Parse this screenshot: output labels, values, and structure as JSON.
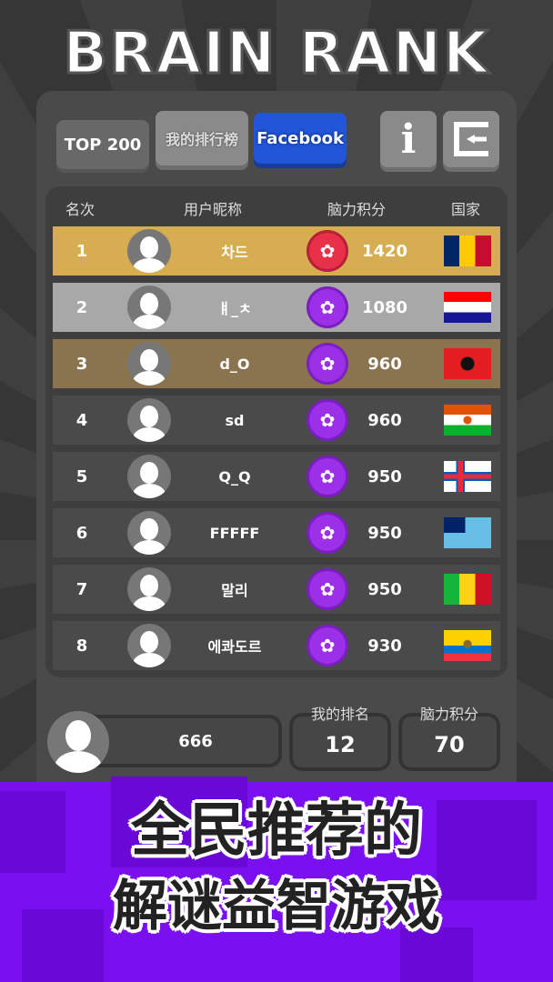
{
  "title": "BRAIN RANK",
  "tabs": {
    "top200": "TOP 200",
    "mine": "我的排行榜",
    "facebook": "Facebook"
  },
  "icons": {
    "info": "i"
  },
  "table": {
    "headers": [
      "名次",
      "用户昵称",
      "脑力积分",
      "国家"
    ],
    "rows": [
      {
        "rank": "1",
        "nick": "차드",
        "score": "1420",
        "flag": "chad",
        "badge": "red-brain-badge",
        "bg": "#d6ad50"
      },
      {
        "rank": "2",
        "nick": "ㅒ_ㅊ",
        "score": "1080",
        "flag": "croatia",
        "badge": "purple-brain-badge",
        "bg": "#a8a8a8"
      },
      {
        "rank": "3",
        "nick": "d_O",
        "score": "960",
        "flag": "albania",
        "badge": "purple-brain-badge",
        "bg": "#8a7450"
      },
      {
        "rank": "4",
        "nick": "sd",
        "score": "960",
        "flag": "niger",
        "badge": "purple-brain-badge",
        "bg": "#4a4a4a"
      },
      {
        "rank": "5",
        "nick": "Q_Q",
        "score": "950",
        "flag": "faroe-islands",
        "badge": "purple-brain-badge",
        "bg": "#4a4a4a"
      },
      {
        "rank": "6",
        "nick": "FFFFF",
        "score": "950",
        "flag": "fiji",
        "badge": "purple-brain-badge",
        "bg": "#4a4a4a"
      },
      {
        "rank": "7",
        "nick": "말리",
        "score": "950",
        "flag": "mali",
        "badge": "purple-brain-badge",
        "bg": "#4a4a4a"
      },
      {
        "rank": "8",
        "nick": "에콰도르",
        "score": "930",
        "flag": "ecuador",
        "badge": "purple-brain-badge",
        "bg": "#4a4a4a"
      }
    ]
  },
  "me": {
    "name": "666",
    "rank_label": "我的排名",
    "rank": "12",
    "score_label": "脑力积分",
    "score": "70"
  },
  "slogan": {
    "line1": "全民推荐的",
    "line2": "解谜益智游戏"
  },
  "colors": {
    "facebook": "#2255d8",
    "banner": "#7a0ff0",
    "gold": "#d6ad50",
    "silver": "#a8a8a8",
    "bronze": "#8a7450",
    "badge_purple": "#9b30e8",
    "badge_red": "#e83048"
  }
}
